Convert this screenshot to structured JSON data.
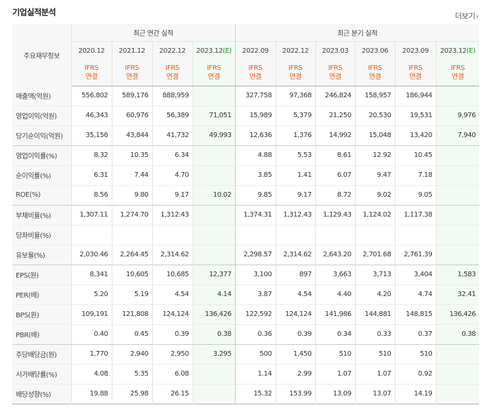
{
  "page": {
    "title": "기업실적분석",
    "more_label": "더보기"
  },
  "table": {
    "row_header_label": "주요재무정보",
    "group_annual": "최근 연간 실적",
    "group_quarterly": "최근 분기 실적",
    "annual_periods": [
      "2020.12",
      "2021.12",
      "2022.12",
      "2023.12"
    ],
    "quarterly_periods": [
      "2022.09",
      "2022.12",
      "2023.03",
      "2023.06",
      "2023.09",
      "2023.12"
    ],
    "estimate_mark": "(E)",
    "ifrs_line1": "IFRS",
    "ifrs_line2": "연결",
    "rows": [
      {
        "label": "매출액(억원)",
        "annual": [
          "556,802",
          "589,176",
          "888,959",
          ""
        ],
        "quarterly": [
          "327,758",
          "97,368",
          "246,824",
          "158,957",
          "186,944",
          ""
        ]
      },
      {
        "label": "영업이익(억원)",
        "annual": [
          "46,343",
          "60,976",
          "56,389",
          "71,051"
        ],
        "quarterly": [
          "15,989",
          "5,379",
          "21,250",
          "20,530",
          "19,531",
          "9,976"
        ]
      },
      {
        "label": "당기순이익(억원)",
        "annual": [
          "35,156",
          "43,844",
          "41,732",
          "49,993"
        ],
        "quarterly": [
          "12,636",
          "1,376",
          "14,992",
          "15,048",
          "13,420",
          "7,940"
        ]
      },
      {
        "label": "영업이익률(%)",
        "annual": [
          "8.32",
          "10.35",
          "6.34",
          ""
        ],
        "quarterly": [
          "4.88",
          "5.53",
          "8.61",
          "12.92",
          "10.45",
          ""
        ]
      },
      {
        "label": "순이익률(%)",
        "annual": [
          "6.31",
          "7.44",
          "4.70",
          ""
        ],
        "quarterly": [
          "3.85",
          "1.41",
          "6.07",
          "9.47",
          "7.18",
          ""
        ]
      },
      {
        "label": "ROE(%)",
        "annual": [
          "8.56",
          "9.80",
          "9.17",
          "10.02"
        ],
        "quarterly": [
          "9.85",
          "9.17",
          "8.72",
          "9.02",
          "9.05",
          ""
        ]
      },
      {
        "label": "부채비율(%)",
        "annual": [
          "1,307.11",
          "1,274.70",
          "1,312.43",
          ""
        ],
        "quarterly": [
          "1,374.31",
          "1,312.43",
          "1,129.43",
          "1,124.02",
          "1,117.38",
          ""
        ]
      },
      {
        "label": "당좌비율(%)",
        "annual": [
          "",
          "",
          "",
          ""
        ],
        "quarterly": [
          "",
          "",
          "",
          "",
          "",
          ""
        ]
      },
      {
        "label": "유보율(%)",
        "annual": [
          "2,030.46",
          "2,264.45",
          "2,314.62",
          ""
        ],
        "quarterly": [
          "2,298.57",
          "2,314.62",
          "2,643.20",
          "2,701.68",
          "2,761.39",
          ""
        ]
      },
      {
        "label": "EPS(원)",
        "annual": [
          "8,341",
          "10,605",
          "10,685",
          "12,377"
        ],
        "quarterly": [
          "3,100",
          "897",
          "3,663",
          "3,713",
          "3,404",
          "1,583"
        ]
      },
      {
        "label": "PER(배)",
        "annual": [
          "5.20",
          "5.19",
          "4.54",
          "4.14"
        ],
        "quarterly": [
          "3.87",
          "4.54",
          "4.40",
          "4.20",
          "4.74",
          "32.41"
        ]
      },
      {
        "label": "BPS(원)",
        "annual": [
          "109,191",
          "121,808",
          "124,124",
          "136,426"
        ],
        "quarterly": [
          "122,592",
          "124,124",
          "141,986",
          "144,881",
          "148,815",
          "136,426"
        ]
      },
      {
        "label": "PBR(배)",
        "annual": [
          "0.40",
          "0.45",
          "0.39",
          "0.38"
        ],
        "quarterly": [
          "0.36",
          "0.39",
          "0.34",
          "0.33",
          "0.37",
          "0.38"
        ]
      },
      {
        "label": "주당배당금(원)",
        "annual": [
          "1,770",
          "2,940",
          "2,950",
          "3,295"
        ],
        "quarterly": [
          "500",
          "1,450",
          "510",
          "510",
          "510",
          ""
        ]
      },
      {
        "label": "시가배당률(%)",
        "annual": [
          "4.08",
          "5.35",
          "6.08",
          ""
        ],
        "quarterly": [
          "1.14",
          "2.99",
          "1.07",
          "1.07",
          "0.92",
          ""
        ]
      },
      {
        "label": "배당성향(%)",
        "annual": [
          "19.88",
          "25.98",
          "26.15",
          ""
        ],
        "quarterly": [
          "15.32",
          "153.99",
          "13.09",
          "13.07",
          "14.19",
          ""
        ]
      }
    ]
  }
}
